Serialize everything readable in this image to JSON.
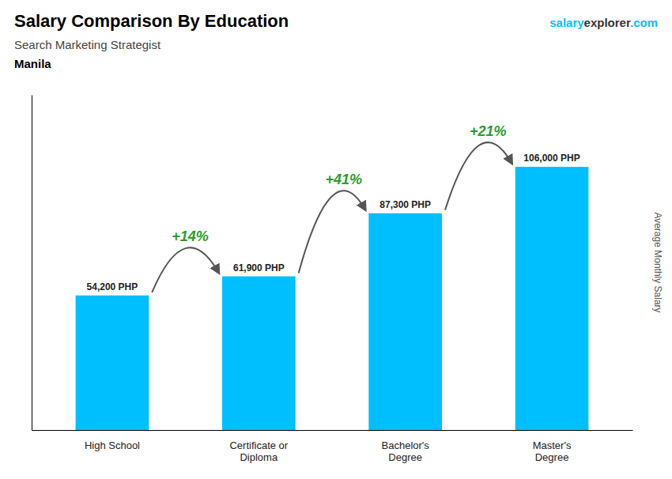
{
  "chart_data": {
    "type": "bar",
    "title": "Salary Comparison By Education",
    "subtitle": "Search Marketing Strategist",
    "city": "Manila",
    "brand": [
      "salary",
      "explorer",
      ".com"
    ],
    "ylabel": "Average Monthly Salary",
    "categories": [
      "High School",
      "Certificate or\nDiploma",
      "Bachelor's\nDegree",
      "Master's\nDegree"
    ],
    "values": [
      54200,
      61900,
      87300,
      106000
    ],
    "value_labels": [
      "54,200 PHP",
      "61,900 PHP",
      "87,300 PHP",
      "106,000 PHP"
    ],
    "data_labels": true,
    "annotations": [
      "+14%",
      "+41%",
      "+21%"
    ],
    "color": "#00BFFF",
    "ylim": [
      0,
      135000
    ],
    "tick_labels": "x",
    "grid": false
  }
}
